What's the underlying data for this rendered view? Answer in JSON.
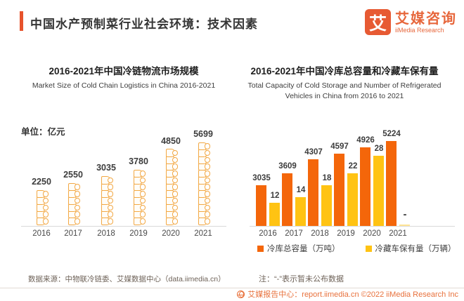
{
  "header": {
    "title": "中国水产预制菜行业社会环境：技术因素"
  },
  "logo": {
    "mark": "艾",
    "name_cn": "艾媒咨询",
    "name_en": "iiMedia Research"
  },
  "chart_data": [
    {
      "type": "bar",
      "title": "2016-2021年中国冷链物流市场规模",
      "subtitle_en": "Market Size of Cold Chain Logistics in China 2016-2021",
      "unit_label": "单位：亿元",
      "categories": [
        "2016",
        "2017",
        "2018",
        "2019",
        "2020",
        "2021"
      ],
      "values": [
        2250,
        2550,
        3035,
        3780,
        4850,
        5699
      ],
      "ylabel": "亿元",
      "ylim": [
        0,
        6000
      ],
      "grid": false,
      "bar_style": "coil-pictogram",
      "color": "#F2A844"
    },
    {
      "type": "bar",
      "title": "2016-2021年中国冷库总容量和冷藏车保有量",
      "subtitle_en_line1": "Total Capacity of Cold Storage and Number of Refrigerated",
      "subtitle_en_line2": "Vehicles in China from 2016 to 2021",
      "categories": [
        "2016",
        "2017",
        "2018",
        "2019",
        "2020",
        "2021"
      ],
      "series": [
        {
          "name": "冷库总容量（万吨）",
          "values": [
            3035,
            3609,
            4307,
            4597,
            4926,
            5224
          ],
          "color": "#F4660A"
        },
        {
          "name": "冷藏车保有量（万辆）",
          "values": [
            12,
            14,
            18,
            22,
            28,
            null
          ],
          "color": "#FFC313"
        }
      ],
      "missing_marker": "-",
      "legend_position": "bottom",
      "grid": false
    }
  ],
  "footnotes": {
    "source": "数据来源：中物联冷链委、艾媒数据中心（data.iimedia.cn）",
    "note": "注：“-”表示暂未公布数据"
  },
  "footer": {
    "text": "艾媒报告中心：report.iimedia.cn  ©2022  iiMedia Research Inc"
  }
}
